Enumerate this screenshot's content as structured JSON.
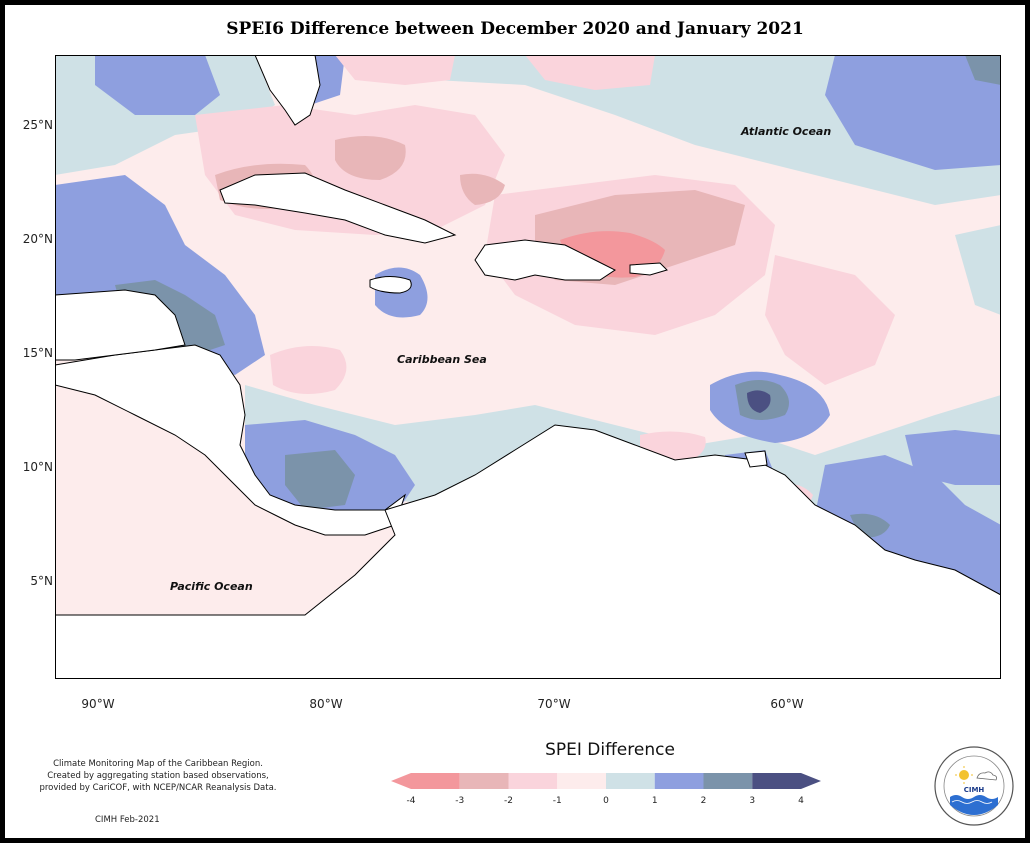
{
  "title": "SPEI6 Difference between December 2020 and January 2021",
  "map": {
    "region": "Caribbean",
    "lon_range": [
      -92,
      -51.5
    ],
    "lat_range": [
      1,
      28
    ],
    "latitude_ticks": [
      "25°N",
      "20°N",
      "15°N",
      "10°N",
      "5°N"
    ],
    "longitude_ticks": [
      "90°W",
      "80°W",
      "70°W",
      "60°W"
    ],
    "labels": {
      "atlantic": "Atlantic Ocean",
      "caribbean": "Caribbean Sea",
      "pacific": "Pacific Ocean"
    }
  },
  "legend": {
    "title": "SPEI Difference",
    "ticks": [
      "-4",
      "-3",
      "-2",
      "-1",
      "0",
      "1",
      "2",
      "3",
      "4"
    ],
    "bins": [
      {
        "from": -4,
        "to": -3,
        "color": "#f3979c"
      },
      {
        "from": -3,
        "to": -2,
        "color": "#e8b6b8"
      },
      {
        "from": -2,
        "to": -1,
        "color": "#fad4dc"
      },
      {
        "from": -1,
        "to": 0,
        "color": "#fdecec"
      },
      {
        "from": 0,
        "to": 1,
        "color": "#cfe1e6"
      },
      {
        "from": 1,
        "to": 2,
        "color": "#8e9fdf"
      },
      {
        "from": 2,
        "to": 3,
        "color": "#7b93aa"
      },
      {
        "from": 3,
        "to": 4,
        "color": "#4b5082"
      }
    ]
  },
  "footnote": {
    "line1": "Climate Monitoring Map of the Caribbean Region.",
    "line2": "Created by aggregating station based observations,",
    "line3": "provided by CariCOF, with NCEP/NCAR Reanalysis Data."
  },
  "credit": "CIMH Feb-2021",
  "logo": {
    "name": "CIMH",
    "icon": "cimh-logo-icon"
  }
}
